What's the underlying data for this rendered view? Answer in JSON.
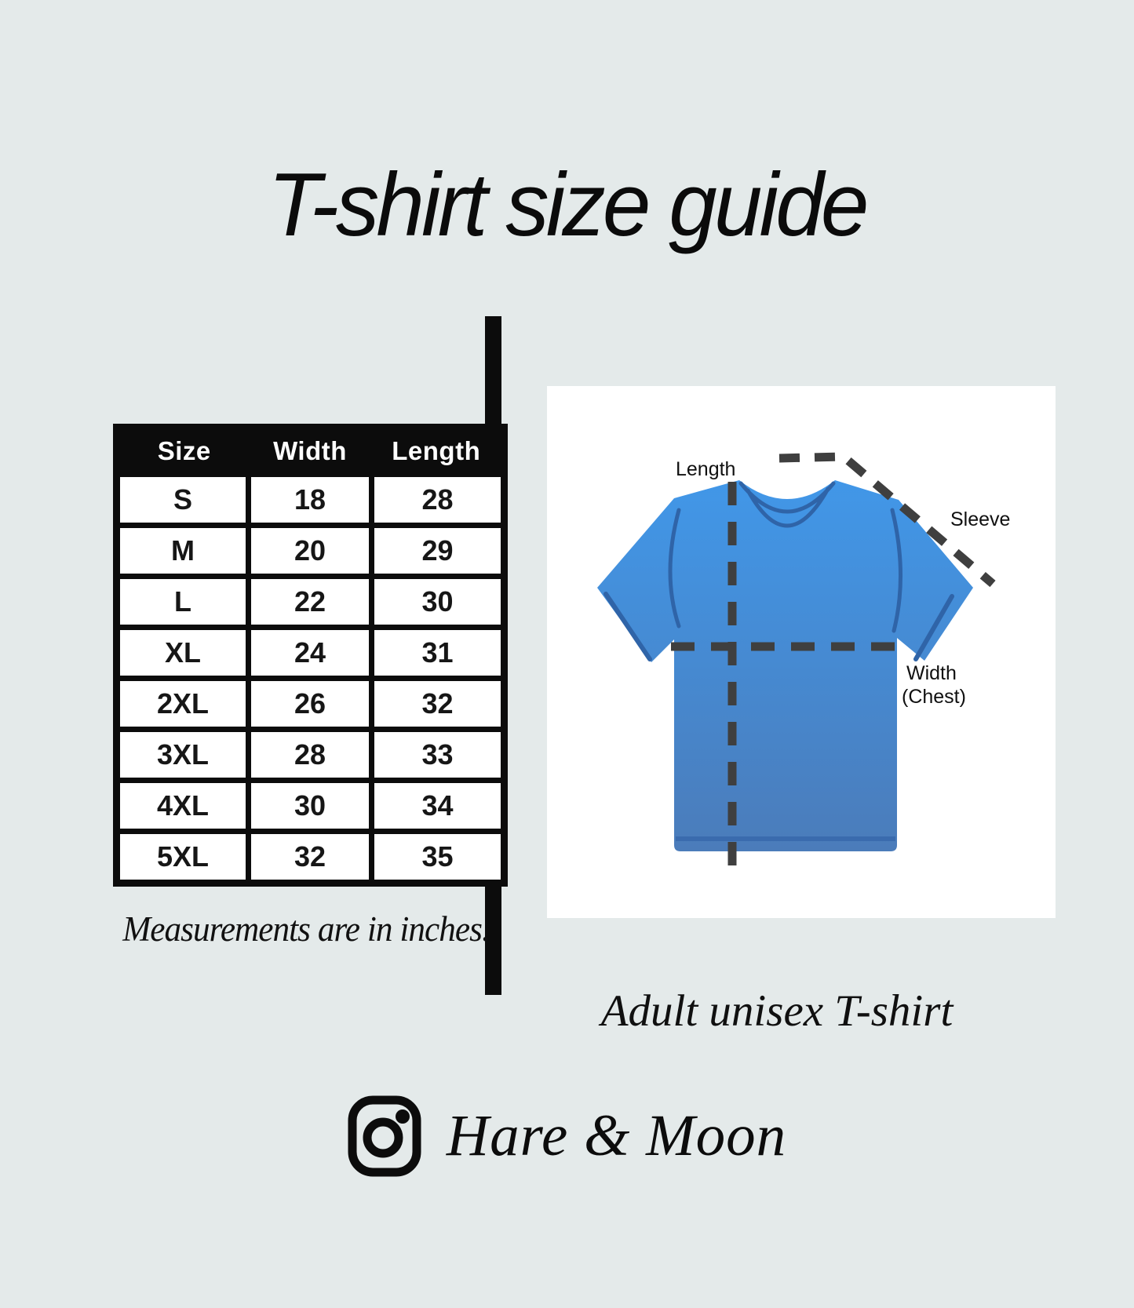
{
  "page": {
    "title": "T-shirt size guide"
  },
  "size_table": {
    "columns": [
      "Size",
      "Width",
      "Length"
    ],
    "rows": [
      [
        "S",
        "18",
        "28"
      ],
      [
        "M",
        "20",
        "29"
      ],
      [
        "L",
        "22",
        "30"
      ],
      [
        "XL",
        "24",
        "31"
      ],
      [
        "2XL",
        "26",
        "32"
      ],
      [
        "3XL",
        "28",
        "33"
      ],
      [
        "4XL",
        "30",
        "34"
      ],
      [
        "5XL",
        "32",
        "35"
      ]
    ],
    "note": "Measurements are in inches."
  },
  "diagram": {
    "labels": {
      "length": "Length",
      "sleeve": "Sleeve",
      "width_line1": "Width",
      "width_line2": "(Chest)"
    },
    "caption": "Adult unisex T-shirt",
    "colors": {
      "shirt_top": "#4197e8",
      "shirt_bottom": "#4b7cba",
      "seam": "#2f64a8",
      "hem": "#3a6bae",
      "dash": "#3f3f3f"
    }
  },
  "footer": {
    "brand": "Hare & Moon",
    "icon": "instagram-icon"
  },
  "colors": {
    "background": "#e4eaea",
    "ink": "#0c0c0c",
    "table_header_bg": "#0c0c0c",
    "table_header_text": "#ffffff",
    "figure_background": "#ffffff"
  }
}
